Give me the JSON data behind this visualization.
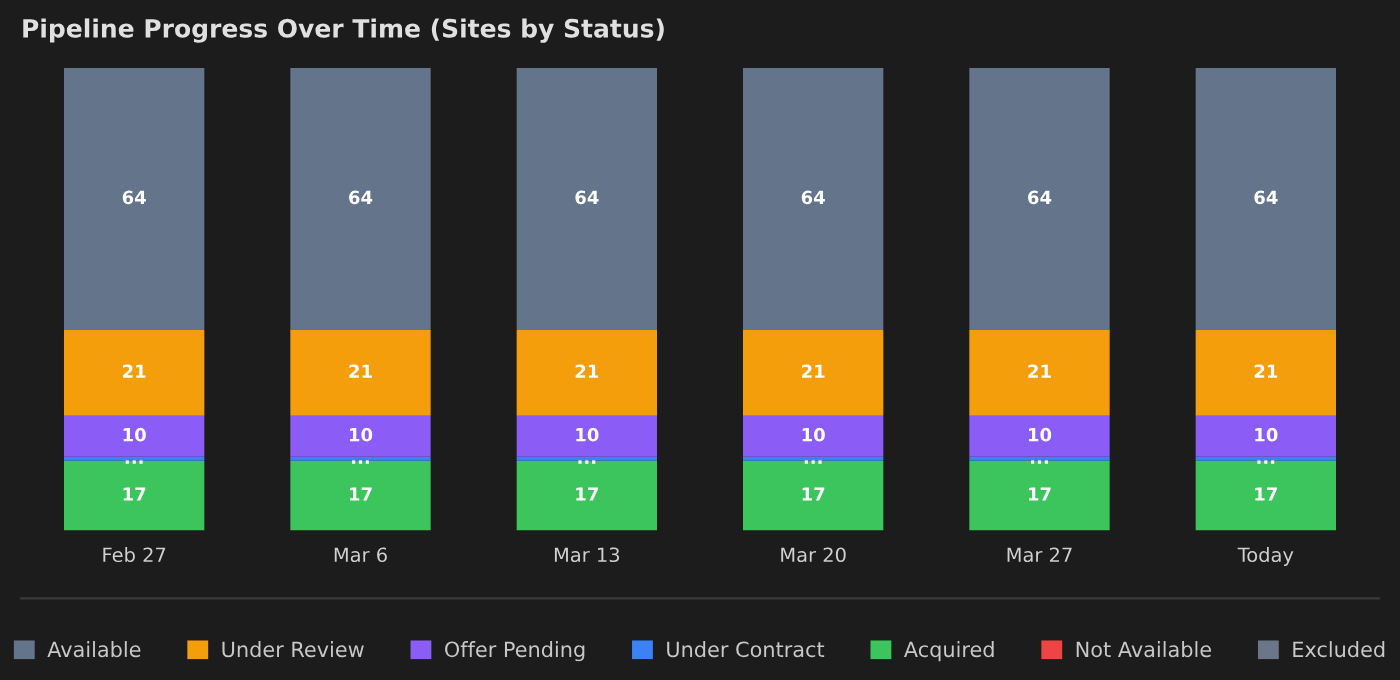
{
  "chart_data": {
    "type": "bar",
    "title": "Pipeline Progress Over Time (Sites by Status)",
    "stacked": true,
    "legend": "bottom",
    "grid": false,
    "tick_labels": "x",
    "categories": [
      "Feb 27",
      "Mar 6",
      "Mar 13",
      "Mar 20",
      "Mar 27",
      "Today"
    ],
    "series": [
      {
        "name": "Excluded",
        "color": "#6b7689",
        "values": [
          0,
          0,
          0,
          0,
          0,
          0
        ],
        "value_labels": [
          null,
          null,
          null,
          null,
          null,
          null
        ]
      },
      {
        "name": "Not Available",
        "color": "#ef4444",
        "values": [
          0,
          0,
          0,
          0,
          0,
          0
        ],
        "value_labels": [
          null,
          null,
          null,
          null,
          null,
          null
        ]
      },
      {
        "name": "Acquired",
        "color": "#3cc55c",
        "values": [
          17,
          17,
          17,
          17,
          17,
          17
        ],
        "value_labels": [
          "17",
          "17",
          "17",
          "17",
          "17",
          "17"
        ]
      },
      {
        "name": "Under Contract",
        "color": "#3b82f6",
        "values": [
          1,
          1,
          1,
          1,
          1,
          1
        ],
        "value_labels": [
          "...",
          "...",
          "...",
          "...",
          "...",
          "..."
        ]
      },
      {
        "name": "Offer Pending",
        "color": "#8b5cf6",
        "values": [
          10,
          10,
          10,
          10,
          10,
          10
        ],
        "value_labels": [
          "10",
          "10",
          "10",
          "10",
          "10",
          "10"
        ]
      },
      {
        "name": "Under Review",
        "color": "#f59e0b",
        "values": [
          21,
          21,
          21,
          21,
          21,
          21
        ],
        "value_labels": [
          "21",
          "21",
          "21",
          "21",
          "21",
          "21"
        ]
      },
      {
        "name": "Available",
        "color": "#64748b",
        "values": [
          64,
          64,
          64,
          64,
          64,
          64
        ],
        "value_labels": [
          "64",
          "64",
          "64",
          "64",
          "64",
          "64"
        ]
      }
    ]
  }
}
